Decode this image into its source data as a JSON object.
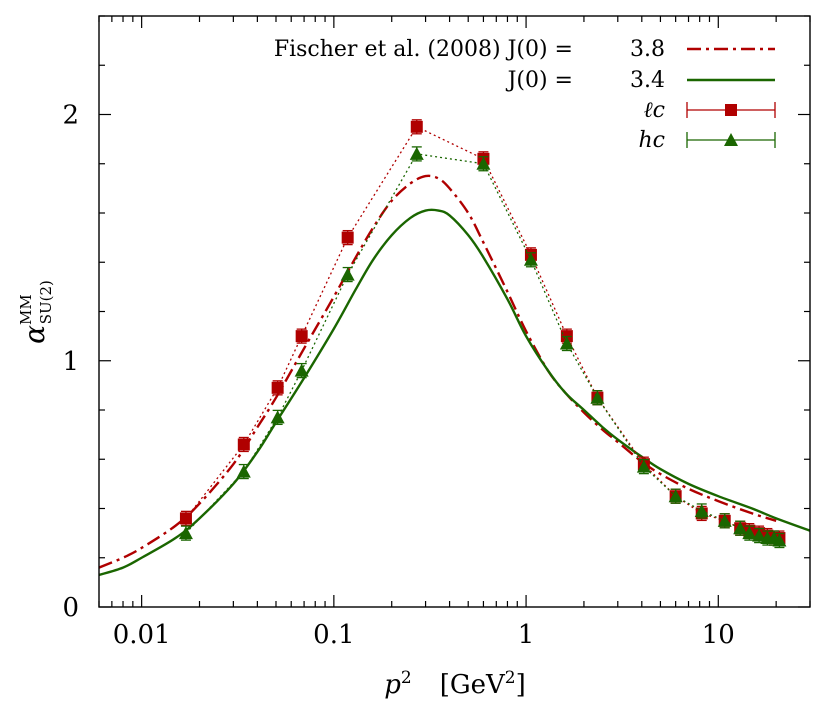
{
  "chart_data": {
    "type": "line",
    "x_scale": "log",
    "xlim": [
      0.006,
      30
    ],
    "ylim": [
      0,
      2.4
    ],
    "xlabel": "p",
    "xlabel_sup": "2",
    "xlabel_unit": "[GeV",
    "xlabel_unit_sup": "2",
    "xlabel_unit_close": "]",
    "ylabel": "α",
    "ylabel_sup": "MM",
    "ylabel_sub": "SU(2)",
    "x_ticks": [
      {
        "value": 0.01,
        "label": "0.01"
      },
      {
        "value": 0.1,
        "label": "0.1"
      },
      {
        "value": 1,
        "label": "1"
      },
      {
        "value": 10,
        "label": "10"
      }
    ],
    "y_ticks": [
      {
        "value": 0,
        "label": "0"
      },
      {
        "value": 1,
        "label": "1"
      },
      {
        "value": 2,
        "label": "2"
      }
    ],
    "grid": false,
    "legend_position": "top-right",
    "series": [
      {
        "name": "Fischer et al. (2008) J(0) =",
        "legend_value": "3.8",
        "color": "#b00000",
        "style": "dash-dot",
        "kind": "curve",
        "x": [
          0.006,
          0.008,
          0.01,
          0.015,
          0.02,
          0.03,
          0.04,
          0.05,
          0.07,
          0.1,
          0.13,
          0.16,
          0.2,
          0.25,
          0.3,
          0.35,
          0.4,
          0.5,
          0.6,
          0.8,
          1.0,
          1.3,
          1.6,
          2.0,
          2.5,
          3.0,
          4.0,
          5.0,
          7.0,
          10.0,
          15.0,
          20.0
        ],
        "y": [
          0.16,
          0.2,
          0.24,
          0.33,
          0.42,
          0.58,
          0.73,
          0.85,
          1.05,
          1.26,
          1.42,
          1.54,
          1.65,
          1.72,
          1.75,
          1.74,
          1.7,
          1.6,
          1.48,
          1.28,
          1.12,
          0.96,
          0.87,
          0.79,
          0.72,
          0.67,
          0.59,
          0.54,
          0.48,
          0.43,
          0.38,
          0.35
        ]
      },
      {
        "name": "J(0) =",
        "legend_value": "3.4",
        "color": "#1a6600",
        "style": "solid",
        "kind": "curve",
        "x": [
          0.006,
          0.008,
          0.01,
          0.015,
          0.02,
          0.03,
          0.04,
          0.05,
          0.07,
          0.1,
          0.13,
          0.16,
          0.2,
          0.25,
          0.3,
          0.35,
          0.4,
          0.5,
          0.6,
          0.8,
          1.0,
          1.3,
          1.6,
          2.0,
          2.5,
          3.0,
          4.0,
          5.0,
          7.0,
          10.0,
          15.0,
          20.0,
          30.0
        ],
        "y": [
          0.13,
          0.16,
          0.2,
          0.28,
          0.36,
          0.5,
          0.63,
          0.75,
          0.93,
          1.13,
          1.29,
          1.41,
          1.51,
          1.58,
          1.61,
          1.61,
          1.59,
          1.51,
          1.42,
          1.25,
          1.1,
          0.96,
          0.87,
          0.8,
          0.73,
          0.68,
          0.61,
          0.56,
          0.5,
          0.45,
          0.4,
          0.36,
          0.31
        ]
      },
      {
        "name": "ℓc",
        "color": "#b00000",
        "style": "dotted",
        "marker": "square",
        "kind": "points",
        "x": [
          0.017,
          0.034,
          0.051,
          0.068,
          0.118,
          0.27,
          0.6,
          1.06,
          1.63,
          2.35,
          4.1,
          6.0,
          8.2,
          10.8,
          13.0,
          14.5,
          16.3,
          18.0,
          19.5,
          20.8
        ],
        "y": [
          0.36,
          0.66,
          0.89,
          1.1,
          1.5,
          1.95,
          1.82,
          1.43,
          1.1,
          0.85,
          0.58,
          0.45,
          0.38,
          0.35,
          0.32,
          0.31,
          0.3,
          0.29,
          0.28,
          0.28
        ]
      },
      {
        "name": "hc",
        "color": "#1a6600",
        "style": "dotted",
        "marker": "triangle",
        "kind": "points",
        "x": [
          0.017,
          0.034,
          0.051,
          0.068,
          0.118,
          0.27,
          0.6,
          1.06,
          1.63,
          2.35,
          4.1,
          6.0,
          8.2,
          10.8,
          13.0,
          14.5,
          16.3,
          18.0,
          19.5,
          20.8
        ],
        "y": [
          0.3,
          0.55,
          0.77,
          0.96,
          1.35,
          1.84,
          1.8,
          1.41,
          1.07,
          0.85,
          0.57,
          0.45,
          0.39,
          0.35,
          0.32,
          0.3,
          0.29,
          0.28,
          0.28,
          0.27
        ]
      }
    ]
  }
}
